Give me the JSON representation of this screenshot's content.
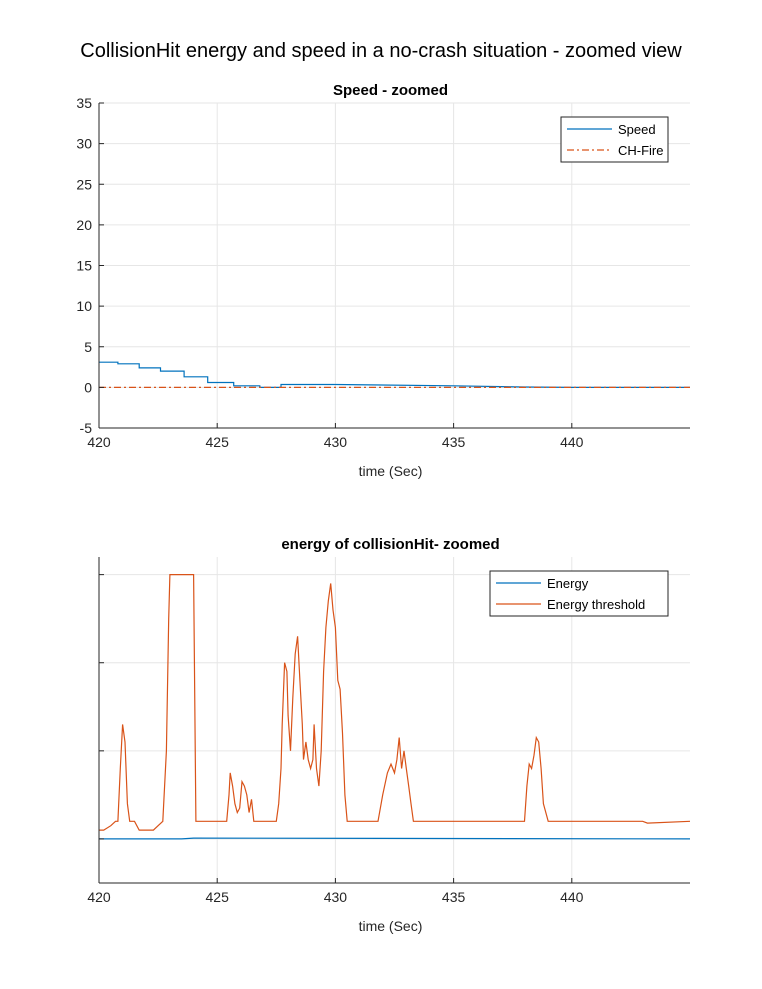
{
  "figure_title": "CollisionHit energy and speed in a no-crash situation - zoomed view",
  "colors": {
    "speed": "#0072BD",
    "chfire": "#D95319",
    "energy": "#0072BD",
    "threshold": "#D95319",
    "grid": "#E6E6E6",
    "axis": "#262626"
  },
  "chart_data": [
    {
      "type": "line",
      "title": "Speed - zoomed",
      "xlabel": "time (Sec)",
      "ylabel": "",
      "xlim": [
        420,
        445
      ],
      "ylim": [
        -5,
        35
      ],
      "xticks": [
        420,
        425,
        430,
        435,
        440
      ],
      "yticks": [
        -5,
        0,
        5,
        10,
        15,
        20,
        25,
        30,
        35
      ],
      "grid": true,
      "legend_position": "top-right",
      "series": [
        {
          "name": "Speed",
          "style": "solid",
          "x": [
            420,
            420.8,
            420.8,
            421.7,
            421.7,
            422.6,
            422.6,
            423.6,
            423.6,
            424.6,
            424.6,
            425.7,
            425.7,
            426.8,
            426.8,
            427.7,
            427.7,
            430,
            435,
            438,
            440,
            445
          ],
          "y": [
            3.1,
            3.1,
            2.9,
            2.9,
            2.4,
            2.4,
            2.0,
            2.0,
            1.3,
            1.3,
            0.6,
            0.6,
            0.2,
            0.2,
            0.0,
            0.0,
            0.35,
            0.35,
            0.2,
            0.05,
            0.0,
            0.0
          ]
        },
        {
          "name": "CH-Fire",
          "style": "dash-dot",
          "x": [
            420,
            445
          ],
          "y": [
            0,
            0
          ]
        }
      ]
    },
    {
      "type": "line",
      "title": "energy of collisionHit- zoomed",
      "xlabel": "time (Sec)",
      "ylabel": "",
      "xlim": [
        420,
        445
      ],
      "ylim": [
        -0.5,
        3.2
      ],
      "xticks": [
        420,
        425,
        430,
        435,
        440
      ],
      "yticks": [
        0,
        1,
        2,
        3
      ],
      "ytick_labels_visible": false,
      "grid": true,
      "legend_position": "top-right",
      "series": [
        {
          "name": "Energy",
          "style": "solid",
          "x": [
            420,
            423.5,
            424,
            445
          ],
          "y": [
            0.0,
            0.0,
            0.01,
            0.0
          ]
        },
        {
          "name": "Energy threshold",
          "style": "solid",
          "x": [
            420,
            420.2,
            420.5,
            420.7,
            420.8,
            420.9,
            421.0,
            421.1,
            421.2,
            421.3,
            421.5,
            421.7,
            422.0,
            422.3,
            422.5,
            422.7,
            422.85,
            422.95,
            423.0,
            423.2,
            423.6,
            424.0,
            424.1,
            424.2,
            424.6,
            425.0,
            425.4,
            425.5,
            425.55,
            425.65,
            425.75,
            425.85,
            425.95,
            426.05,
            426.15,
            426.25,
            426.35,
            426.45,
            426.55,
            426.6,
            426.7,
            426.8,
            426.9,
            427.0,
            427.5,
            427.6,
            427.7,
            427.75,
            427.85,
            427.95,
            428.0,
            428.1,
            428.2,
            428.3,
            428.4,
            428.5,
            428.6,
            428.65,
            428.75,
            428.85,
            428.95,
            429.05,
            429.1,
            429.2,
            429.3,
            429.4,
            429.5,
            429.6,
            429.7,
            429.8,
            429.9,
            430.0,
            430.1,
            430.2,
            430.3,
            430.4,
            430.5,
            430.6,
            430.7,
            430.8,
            430.9,
            431.5,
            431.8,
            432.0,
            432.2,
            432.35,
            432.5,
            432.6,
            432.7,
            432.8,
            432.9,
            433.0,
            433.1,
            433.2,
            433.3,
            434.0,
            436.0,
            437.5,
            438.0,
            438.1,
            438.2,
            438.3,
            438.4,
            438.5,
            438.6,
            438.7,
            438.8,
            439.0,
            439.5,
            441.0,
            443.0,
            443.2,
            445.0
          ],
          "y": [
            0.1,
            0.1,
            0.15,
            0.2,
            0.2,
            0.8,
            1.3,
            1.1,
            0.4,
            0.2,
            0.2,
            0.1,
            0.1,
            0.1,
            0.15,
            0.2,
            1.0,
            2.5,
            3.0,
            3.0,
            3.0,
            3.0,
            0.2,
            0.2,
            0.2,
            0.2,
            0.2,
            0.5,
            0.75,
            0.6,
            0.4,
            0.3,
            0.35,
            0.65,
            0.6,
            0.5,
            0.3,
            0.45,
            0.2,
            0.2,
            0.2,
            0.2,
            0.2,
            0.2,
            0.2,
            0.4,
            0.8,
            1.3,
            2.0,
            1.9,
            1.4,
            1.0,
            1.6,
            2.1,
            2.3,
            1.8,
            1.3,
            0.9,
            1.1,
            0.9,
            0.8,
            0.9,
            1.3,
            0.8,
            0.6,
            1.0,
            1.9,
            2.4,
            2.7,
            2.9,
            2.6,
            2.4,
            1.8,
            1.7,
            1.2,
            0.5,
            0.2,
            0.2,
            0.2,
            0.2,
            0.2,
            0.2,
            0.2,
            0.5,
            0.75,
            0.85,
            0.75,
            0.9,
            1.15,
            0.8,
            1.0,
            0.8,
            0.6,
            0.4,
            0.2,
            0.2,
            0.2,
            0.2,
            0.2,
            0.6,
            0.85,
            0.8,
            0.95,
            1.15,
            1.1,
            0.8,
            0.4,
            0.2,
            0.2,
            0.2,
            0.2,
            0.18,
            0.2
          ]
        }
      ]
    }
  ]
}
